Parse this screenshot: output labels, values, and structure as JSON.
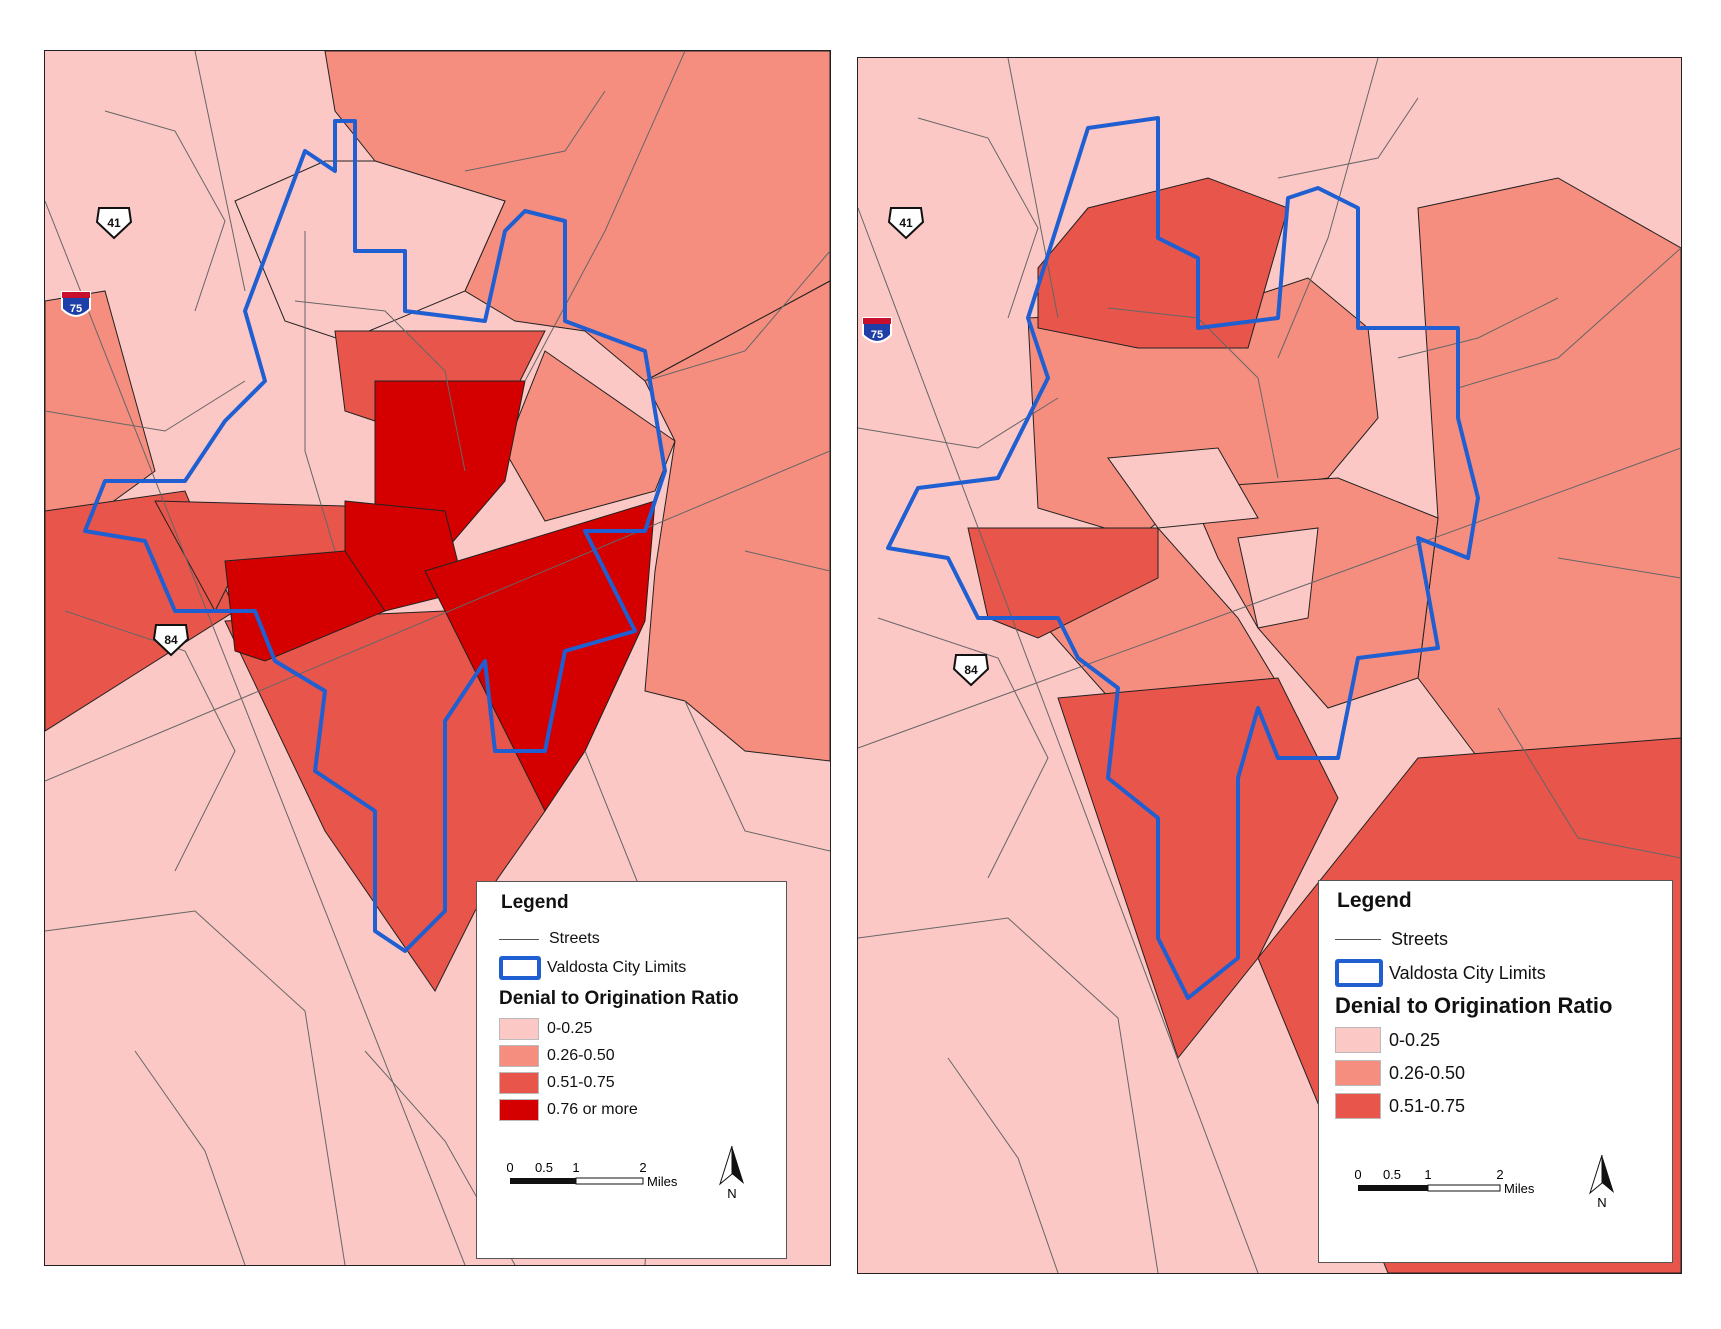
{
  "colors": {
    "class_0_25": "#fcc8c6",
    "class_26_50": "#f68e80",
    "class_51_75": "#e8554a",
    "class_76_plus": "#d40000",
    "city_limits": "#1f5fd1",
    "streets": "#666666"
  },
  "highway_labels": {
    "us41": "41",
    "i75": "75",
    "us84": "84"
  },
  "left_map": {
    "legend": {
      "title": "Legend",
      "streets_label": "Streets",
      "city_limits_label": "Valdosta City Limits",
      "ratio_title": "Denial to Origination Ratio",
      "classes": [
        {
          "label": "0-0.25",
          "color": "#fcc8c6"
        },
        {
          "label": "0.26-0.50",
          "color": "#f68e80"
        },
        {
          "label": "0.51-0.75",
          "color": "#e8554a"
        },
        {
          "label": "0.76 or more",
          "color": "#d40000"
        }
      ],
      "scale": {
        "t0": "0",
        "t1": "0.5",
        "t2": "1",
        "t3": "2",
        "unit": "Miles"
      },
      "north_label": "N"
    }
  },
  "right_map": {
    "legend": {
      "title": "Legend",
      "streets_label": "Streets",
      "city_limits_label": "Valdosta City Limits",
      "ratio_title": "Denial to Origination Ratio",
      "classes": [
        {
          "label": "0-0.25",
          "color": "#fcc8c6"
        },
        {
          "label": "0.26-0.50",
          "color": "#f68e80"
        },
        {
          "label": "0.51-0.75",
          "color": "#e8554a"
        }
      ],
      "scale": {
        "t0": "0",
        "t1": "0.5",
        "t2": "1",
        "t3": "2",
        "unit": "Miles"
      },
      "north_label": "N"
    }
  }
}
